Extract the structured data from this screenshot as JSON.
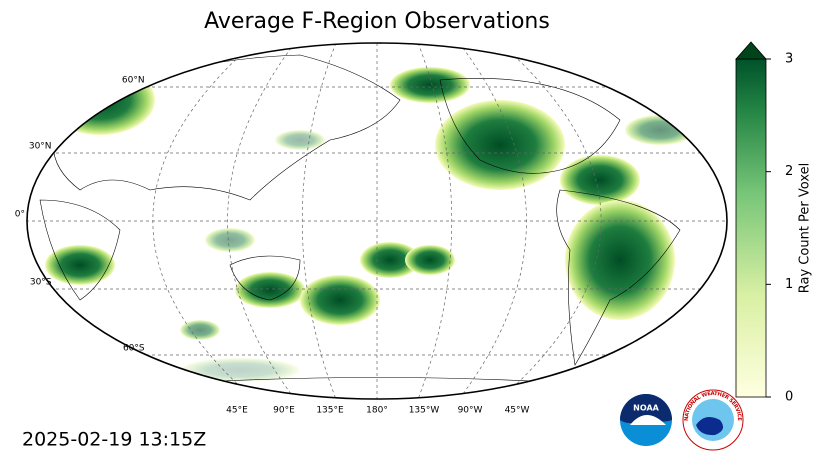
{
  "header": {
    "title": "Average F-Region Observations"
  },
  "map": {
    "lat_labels": [
      "60°N",
      "30°N",
      "0°",
      "30°S",
      "60°S"
    ],
    "lon_labels": [
      "45°E",
      "90°E",
      "135°E",
      "180°",
      "135°W",
      "90°W",
      "45°W"
    ]
  },
  "colorbar": {
    "label": "Ray Count Per Voxel",
    "lim": [
      0,
      3
    ],
    "ticks": [
      0,
      1,
      2,
      3
    ]
  },
  "footer": {
    "timestamp": "2025-02-19 13:15Z"
  },
  "logos": {
    "noaa": "NOAA",
    "nws": "NATIONAL WEATHER SERVICE"
  }
}
